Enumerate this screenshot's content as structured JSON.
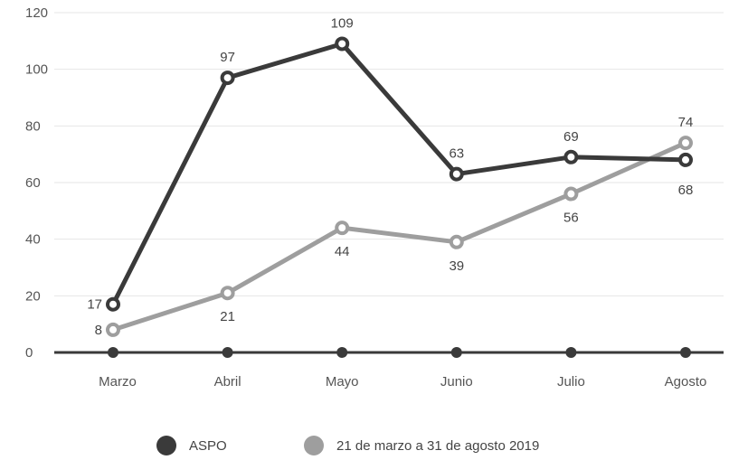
{
  "chart_data": {
    "type": "line",
    "categories": [
      "Marzo",
      "Abril",
      "Mayo",
      "Junio",
      "Julio",
      "Agosto"
    ],
    "ylim": [
      0,
      120
    ],
    "y_ticks": [
      0,
      20,
      40,
      60,
      80,
      100,
      120
    ],
    "grid": true,
    "legend_position": "bottom",
    "series": [
      {
        "name": "ASPO",
        "values": [
          17,
          97,
          109,
          63,
          69,
          68
        ],
        "color": "#3a3a3a"
      },
      {
        "name": "21 de marzo a 31 de agosto 2019",
        "values": [
          8,
          21,
          44,
          39,
          56,
          74
        ],
        "color": "#9e9e9e"
      }
    ]
  }
}
